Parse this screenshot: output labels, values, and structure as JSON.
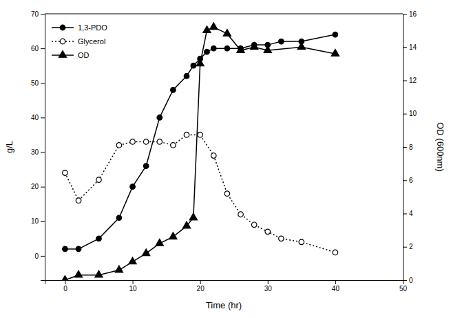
{
  "chart_data": {
    "type": "line",
    "xlabel": "Time (hr)",
    "ylabel": "g/L",
    "y2label": "OD (600nm)",
    "xlim": [
      -3,
      50
    ],
    "xticks": [
      0,
      10,
      20,
      30,
      40,
      50
    ],
    "ylim": [
      -7,
      70
    ],
    "yticks": [
      0,
      10,
      20,
      30,
      40,
      50,
      60,
      70
    ],
    "y2lim": [
      0,
      16
    ],
    "y2ticks": [
      0,
      2,
      4,
      6,
      8,
      10,
      12,
      14,
      16
    ],
    "grid": false,
    "legend": "upper left",
    "series": [
      {
        "name": "1,3-PDO",
        "color": "#000000",
        "marker": "circle",
        "line_style": "solid",
        "x": [
          0,
          2,
          5,
          8,
          10,
          12,
          14,
          16,
          18,
          19,
          20,
          21,
          22,
          24,
          26,
          28,
          30,
          32,
          35,
          40
        ],
        "values": [
          2,
          2,
          5,
          11,
          20,
          26,
          40,
          48,
          52,
          55,
          57,
          59,
          60,
          60,
          60,
          61,
          61,
          62,
          62,
          64
        ]
      },
      {
        "name": "Glycerol",
        "color": "#000000",
        "marker": "open-circle",
        "line_style": "dotted",
        "x": [
          0,
          2,
          5,
          8,
          10,
          12,
          14,
          16,
          18,
          20,
          22,
          24,
          26,
          28,
          30,
          32,
          35,
          40
        ],
        "values": [
          24,
          16,
          22,
          32,
          33,
          33,
          33,
          32,
          35,
          35,
          29,
          18,
          12,
          9,
          7,
          5,
          4,
          1
        ]
      },
      {
        "name": "OD",
        "color": "#000000",
        "marker": "triangle",
        "line_style": "solid",
        "axis": "y2",
        "x": [
          0,
          2,
          5,
          8,
          10,
          12,
          14,
          16,
          18,
          19,
          20,
          21,
          22,
          24,
          26,
          28,
          30,
          35,
          40
        ],
        "values": [
          0,
          0.3,
          0.3,
          0.6,
          1.1,
          1.6,
          2.2,
          2.6,
          3.25,
          3.75,
          13.0,
          15.0,
          15.2,
          14.8,
          13.8,
          14.0,
          13.8,
          14.0,
          13.6
        ]
      }
    ]
  }
}
